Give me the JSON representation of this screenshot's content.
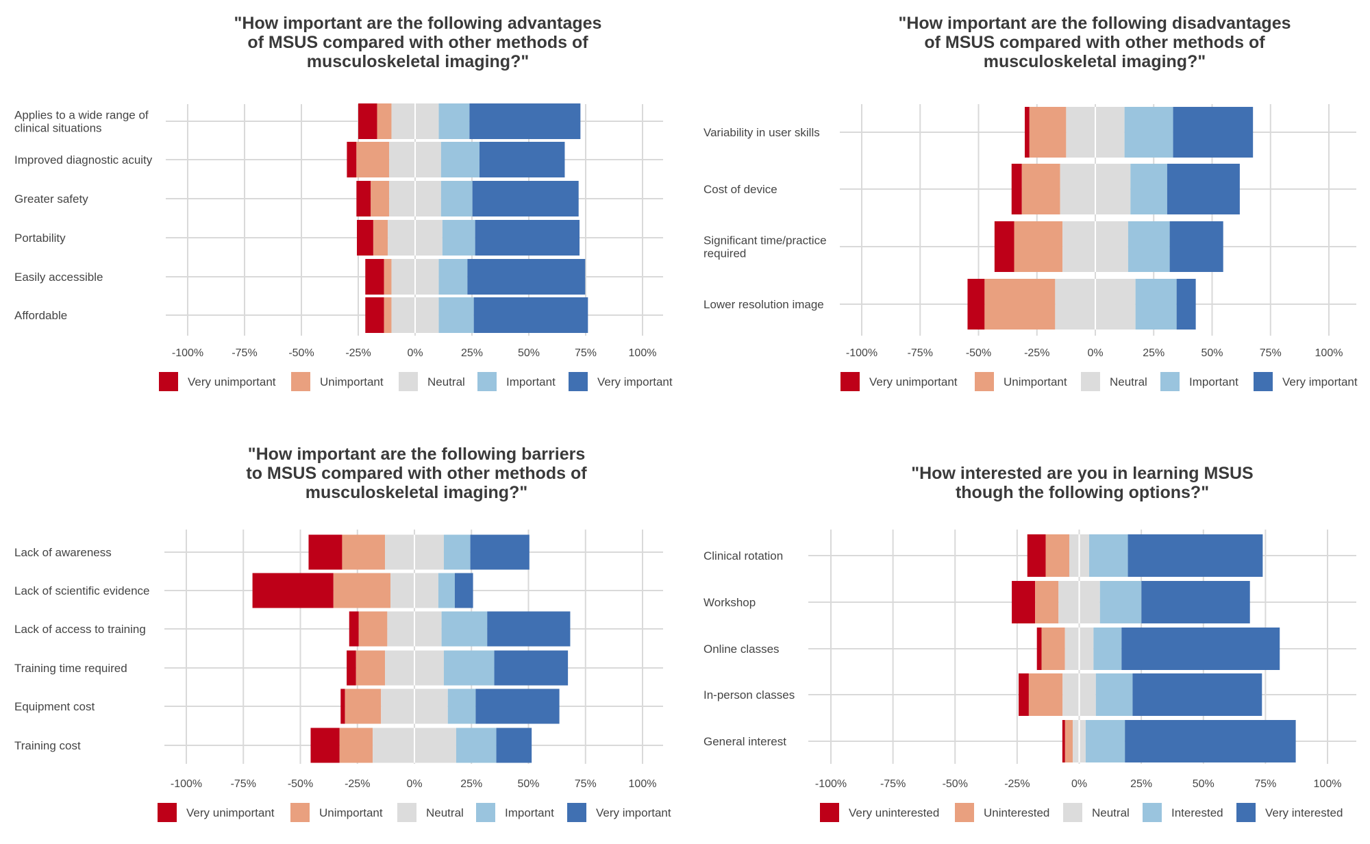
{
  "colors": {
    "level1": "#BE0018",
    "level2": "#E9A07F",
    "level3": "#DCDCDC",
    "level4": "#9AC4DE",
    "level5": "#4070B2",
    "grid": "#D9D9D9",
    "text": "#444444",
    "title": "#3A3A3A"
  },
  "chart_data": [
    {
      "type": "bar",
      "subtype": "diverging-stacked-likert",
      "title": "\"How important are the following advantages of MSUS compared with other methods of musculoskeletal imaging?\"",
      "title_lines": [
        "\"How important are the following advantages",
        "of MSUS compared with other methods of",
        "musculoskeletal imaging?\""
      ],
      "categories": [
        "Applies to a wide range of clinical situations",
        "Improved diagnostic acuity",
        "Greater safety",
        "Portability",
        "Easily accessible",
        "Affordable"
      ],
      "category_lines": [
        [
          "Applies to a wide range of",
          "clinical situations"
        ],
        [
          "Improved diagnostic acuity"
        ],
        [
          "Greater safety"
        ],
        [
          "Portability"
        ],
        [
          "Easily accessible"
        ],
        [
          "Affordable"
        ]
      ],
      "series": [
        {
          "name": "Very unimportant",
          "values": [
            8.3,
            4.2,
            6.3,
            7.2,
            8.2,
            8.2
          ]
        },
        {
          "name": "Unimportant",
          "values": [
            6.3,
            14.4,
            8.1,
            6.4,
            3.3,
            3.3
          ]
        },
        {
          "name": "Neutral",
          "values": [
            20.8,
            22.8,
            22.8,
            24.0,
            20.8,
            20.8
          ]
        },
        {
          "name": "Important",
          "values": [
            13.5,
            16.9,
            13.8,
            14.4,
            12.6,
            15.4
          ]
        },
        {
          "name": "Very important",
          "values": [
            48.8,
            37.5,
            46.7,
            45.9,
            51.8,
            50.2
          ]
        }
      ],
      "xlim": [
        -100,
        100
      ],
      "xticks": [
        -100,
        -75,
        -50,
        -25,
        0,
        25,
        50,
        75,
        100
      ],
      "xtick_labels": [
        "-100%",
        "-75%",
        "-50%",
        "-25%",
        "0%",
        "25%",
        "50%",
        "75%",
        "100%"
      ],
      "xlabel": "",
      "ylabel": "",
      "grid": true,
      "legend": "bottom"
    },
    {
      "type": "bar",
      "subtype": "diverging-stacked-likert",
      "title": "\"How important are the following disadvantages of MSUS compared with other methods of musculoskeletal imaging?\"",
      "title_lines": [
        "\"How important are the following disadvantages",
        "of MSUS compared with other methods of",
        "musculoskeletal imaging?\""
      ],
      "categories": [
        "Variability in user skills",
        "Cost of device",
        "Significant time/practice required",
        "Lower resolution image"
      ],
      "category_lines": [
        [
          "Variability in user skills"
        ],
        [
          "Cost of device"
        ],
        [
          "Significant time/practice",
          "required"
        ],
        [
          "Lower resolution image"
        ]
      ],
      "series": [
        {
          "name": "Very unimportant",
          "values": [
            2.0,
            4.4,
            8.4,
            7.3
          ]
        },
        {
          "name": "Unimportant",
          "values": [
            15.7,
            16.4,
            20.7,
            30.2
          ]
        },
        {
          "name": "Neutral",
          "values": [
            25.0,
            30.1,
            28.1,
            34.4
          ]
        },
        {
          "name": "Important",
          "values": [
            20.8,
            15.7,
            17.8,
            17.6
          ]
        },
        {
          "name": "Very important",
          "values": [
            34.2,
            31.1,
            22.9,
            8.2
          ]
        }
      ],
      "xlim": [
        -100,
        100
      ],
      "xticks": [
        -100,
        -75,
        -50,
        -25,
        0,
        25,
        50,
        75,
        100
      ],
      "xtick_labels": [
        "-100%",
        "-75%",
        "-50%",
        "-25%",
        "0%",
        "25%",
        "50%",
        "75%",
        "100%"
      ],
      "xlabel": "",
      "ylabel": "",
      "grid": true,
      "legend": "bottom"
    },
    {
      "type": "bar",
      "subtype": "diverging-stacked-likert",
      "title": "\"How important are the following barriers to MSUS compared with other methods of musculoskeletal imaging?\"",
      "title_lines": [
        "\"How important are the following barriers",
        "to MSUS compared with other methods of",
        "musculoskeletal imaging?\""
      ],
      "categories": [
        "Lack of awareness",
        "Lack of scientific evidence",
        "Lack of access to training",
        "Training time required",
        "Equipment cost",
        "Training cost"
      ],
      "category_lines": [
        [
          "Lack of awareness"
        ],
        [
          "Lack of scientific evidence"
        ],
        [
          "Lack of access to training"
        ],
        [
          "Training time required"
        ],
        [
          "Equipment cost"
        ],
        [
          "Training cost"
        ]
      ],
      "series": [
        {
          "name": "Very unimportant",
          "values": [
            14.7,
            35.5,
            4.2,
            4.1,
            1.9,
            12.7
          ]
        },
        {
          "name": "Unimportant",
          "values": [
            18.8,
            25.0,
            12.5,
            12.7,
            15.8,
            14.5
          ]
        },
        {
          "name": "Neutral",
          "values": [
            25.8,
            21.0,
            23.8,
            25.8,
            29.3,
            36.6
          ]
        },
        {
          "name": "Important",
          "values": [
            11.6,
            7.2,
            20.0,
            22.1,
            12.2,
            17.6
          ]
        },
        {
          "name": "Very important",
          "values": [
            25.9,
            8.0,
            36.4,
            32.3,
            36.7,
            15.5
          ]
        }
      ],
      "xlim": [
        -100,
        100
      ],
      "xticks": [
        -100,
        -75,
        -50,
        -25,
        0,
        25,
        50,
        75,
        100
      ],
      "xtick_labels": [
        "-100%",
        "-75%",
        "-50%",
        "-25%",
        "0%",
        "25%",
        "50%",
        "75%",
        "100%"
      ],
      "xlabel": "",
      "ylabel": "",
      "grid": true,
      "legend": "bottom"
    },
    {
      "type": "bar",
      "subtype": "diverging-stacked-likert",
      "title": "\"How interested are you in learning MSUS though the following options?\"",
      "title_lines": [
        "\"How interested are you in learning MSUS",
        "though the following options?\""
      ],
      "categories": [
        "Clinical rotation",
        "Workshop",
        "Online classes",
        "In-person classes",
        "General interest"
      ],
      "category_lines": [
        [
          "Clinical rotation"
        ],
        [
          "Workshop"
        ],
        [
          "Online classes"
        ],
        [
          "In-person classes"
        ],
        [
          "General interest"
        ]
      ],
      "series": [
        {
          "name": "Very uninterested",
          "values": [
            7.4,
            9.4,
            1.9,
            4.1,
            1.1
          ]
        },
        {
          "name": "Uninterested",
          "values": [
            9.5,
            9.4,
            9.4,
            13.6,
            3.1
          ]
        },
        {
          "name": "Neutral",
          "values": [
            8.0,
            16.7,
            11.5,
            13.4,
            5.2
          ]
        },
        {
          "name": "Interested",
          "values": [
            15.6,
            16.7,
            11.3,
            14.8,
            15.8
          ]
        },
        {
          "name": "Very interested",
          "values": [
            54.3,
            43.7,
            63.7,
            52.1,
            68.8
          ]
        }
      ],
      "xlim": [
        -100,
        100
      ],
      "xticks": [
        -100,
        -75,
        -50,
        -25,
        0,
        25,
        50,
        75,
        100
      ],
      "xtick_labels": [
        "-100%",
        "-75%",
        "-50%",
        "-25%",
        "0%",
        "25%",
        "50%",
        "75%",
        "100%"
      ],
      "xlabel": "",
      "ylabel": "",
      "grid": true,
      "legend": "bottom"
    }
  ]
}
